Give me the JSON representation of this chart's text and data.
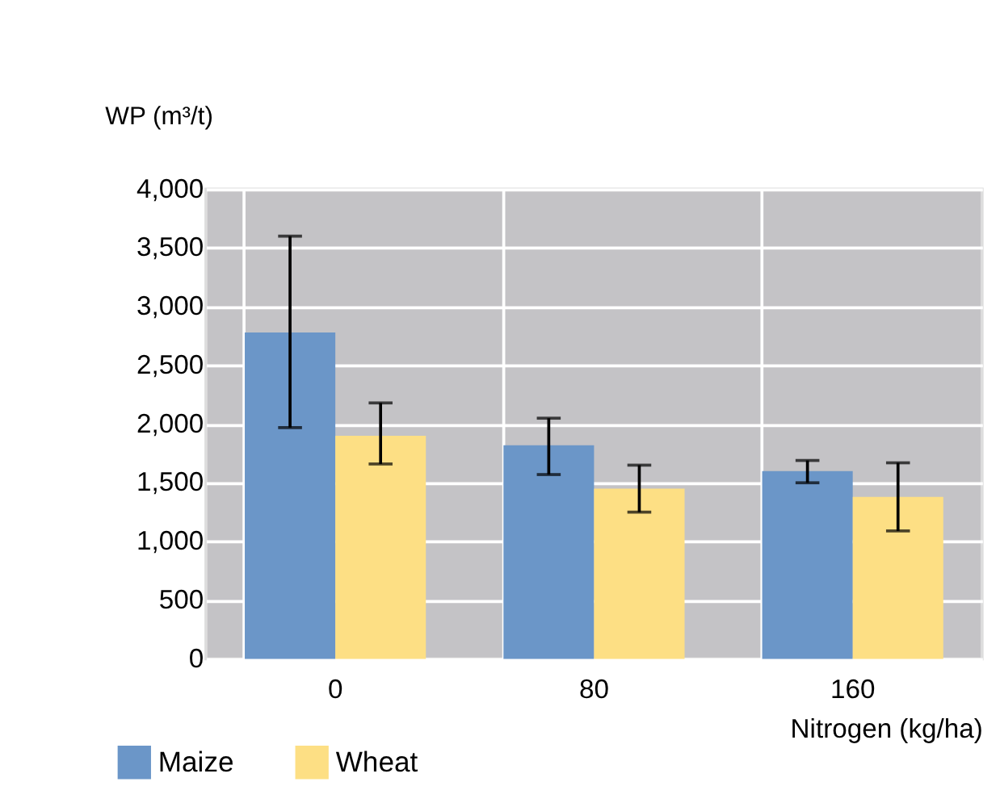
{
  "chart_data": {
    "type": "bar",
    "xlabel": "Nitrogen (kg/ha)",
    "ylabel": "WP (m³/t)",
    "categories": [
      "0",
      "80",
      "160"
    ],
    "series": [
      {
        "name": "Maize",
        "color": "#6b96c8",
        "values": [
          2780,
          1820,
          1600
        ],
        "errors": [
          [
            1970,
            3600
          ],
          [
            1570,
            2050
          ],
          [
            1500,
            1690
          ]
        ]
      },
      {
        "name": "Wheat",
        "color": "#fddf84",
        "values": [
          1900,
          1450,
          1380
        ],
        "errors": [
          [
            1660,
            2180
          ],
          [
            1250,
            1650
          ],
          [
            1090,
            1670
          ]
        ]
      }
    ],
    "ylim": [
      0,
      4000
    ],
    "yticks": [
      0,
      500,
      {
        "value": 1000,
        "label": "1,000"
      },
      {
        "value": 1500,
        "label": "1,500"
      },
      {
        "value": 2000,
        "label": "2,000"
      },
      {
        "value": 2500,
        "label": "2,500"
      },
      {
        "value": 3000,
        "label": "3,000"
      },
      {
        "value": 3500,
        "label": "3,500"
      },
      {
        "value": 4000,
        "label": "4,000"
      }
    ],
    "grid": true,
    "legend": "bottom left"
  }
}
